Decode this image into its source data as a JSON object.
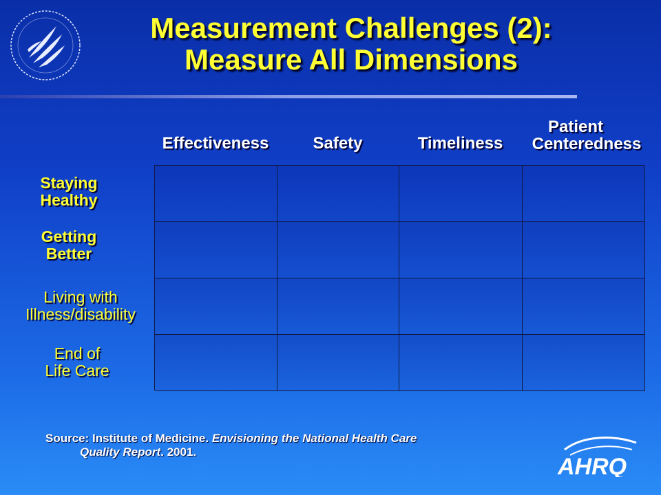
{
  "slide": {
    "title_line1": "Measurement Challenges (2):",
    "title_line2": "Measure All Dimensions"
  },
  "table": {
    "columns": [
      {
        "line1": "Effectiveness",
        "line2": ""
      },
      {
        "line1": "Safety",
        "line2": ""
      },
      {
        "line1": "Timeliness",
        "line2": ""
      },
      {
        "line1": "Patient",
        "line2": "Centeredness"
      }
    ],
    "rows": [
      {
        "line1": "Staying",
        "line2": "Healthy"
      },
      {
        "line1": "Getting",
        "line2": "Better"
      },
      {
        "line1": "Living with",
        "line2": "Illness/disability"
      },
      {
        "line1": "End of",
        "line2": "Life Care"
      }
    ]
  },
  "source": {
    "prefix": "Source: Institute of Medicine. ",
    "title_part1": "Envisioning the National Health Care",
    "title_part2": "Quality Report",
    "suffix": ". 2001."
  },
  "logos": {
    "left": "hhs-eagle-seal",
    "right_text": "AHRQ"
  },
  "colors": {
    "title": "#ffff33",
    "row_header": "#ffff33",
    "column_header": "#ffffff",
    "background_top": "#0a2ea8",
    "background_bottom": "#2a8cf6"
  }
}
